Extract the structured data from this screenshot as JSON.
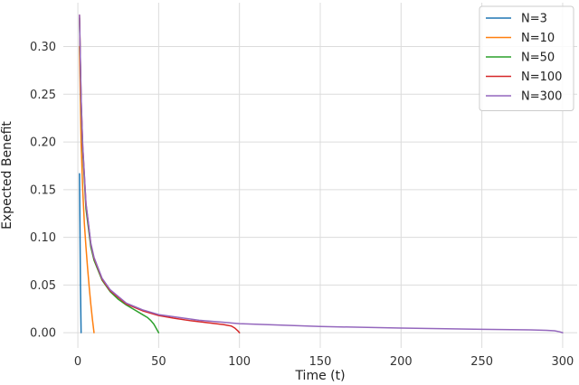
{
  "chart_data": {
    "type": "line",
    "xlabel": "Time (t)",
    "ylabel": "Expected Benefit",
    "xlim": [
      -9,
      309
    ],
    "ylim": [
      -0.016,
      0.346
    ],
    "xticks": [
      0,
      50,
      100,
      150,
      200,
      250,
      300
    ],
    "yticks": [
      0.0,
      0.05,
      0.1,
      0.15,
      0.2,
      0.25,
      0.3
    ],
    "ytick_labels": [
      "0.00",
      "0.05",
      "0.10",
      "0.15",
      "0.20",
      "0.25",
      "0.30"
    ],
    "grid": true,
    "legend_position": "top-right",
    "series": [
      {
        "name": "N=3",
        "color": "#1f77b4",
        "x": [
          1,
          1.3,
          1.6,
          2
        ],
        "y": [
          0.1667,
          0.11,
          0.05,
          0.0
        ]
      },
      {
        "name": "N=10",
        "color": "#ff7f0e",
        "x": [
          1,
          2,
          3,
          4,
          5,
          6,
          7,
          8,
          9,
          10
        ],
        "y": [
          0.3,
          0.2,
          0.15,
          0.115,
          0.09,
          0.068,
          0.048,
          0.03,
          0.014,
          0.0
        ]
      },
      {
        "name": "N=50",
        "color": "#2ca02c",
        "x": [
          1,
          2,
          3,
          5,
          8,
          10,
          15,
          20,
          25,
          30,
          35,
          40,
          43,
          45,
          47,
          48,
          49,
          50
        ],
        "y": [
          0.33,
          0.24,
          0.19,
          0.13,
          0.09,
          0.076,
          0.055,
          0.043,
          0.035,
          0.029,
          0.024,
          0.019,
          0.016,
          0.013,
          0.009,
          0.006,
          0.003,
          0.0
        ]
      },
      {
        "name": "N=100",
        "color": "#d62728",
        "x": [
          1,
          2,
          3,
          5,
          8,
          10,
          15,
          20,
          30,
          40,
          50,
          60,
          70,
          80,
          90,
          95,
          97,
          99,
          100
        ],
        "y": [
          0.333,
          0.245,
          0.195,
          0.135,
          0.093,
          0.078,
          0.056,
          0.044,
          0.03,
          0.023,
          0.018,
          0.015,
          0.0125,
          0.0105,
          0.0085,
          0.007,
          0.005,
          0.002,
          0.0
        ]
      },
      {
        "name": "N=300",
        "color": "#9467bd",
        "x": [
          1,
          2,
          3,
          5,
          8,
          10,
          15,
          20,
          30,
          40,
          50,
          75,
          100,
          150,
          200,
          250,
          280,
          290,
          295,
          298,
          300
        ],
        "y": [
          0.333,
          0.246,
          0.196,
          0.136,
          0.094,
          0.079,
          0.057,
          0.045,
          0.031,
          0.024,
          0.019,
          0.013,
          0.0095,
          0.0065,
          0.0048,
          0.0036,
          0.0029,
          0.0025,
          0.002,
          0.001,
          0.0
        ]
      }
    ]
  }
}
